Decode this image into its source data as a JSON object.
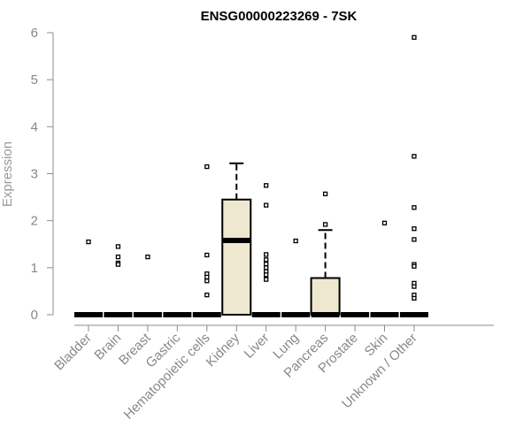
{
  "chart_data": {
    "type": "box",
    "title": "ENSG00000223269 - 7SK",
    "xlabel": "",
    "ylabel": "Expression",
    "ylim": [
      0,
      6
    ],
    "yticks": [
      "0",
      "1",
      "2",
      "3",
      "4",
      "5",
      "6"
    ],
    "categories": [
      "Bladder",
      "Brain",
      "Breast",
      "Gastric",
      "Hematopoietic cells",
      "Kidney",
      "Liver",
      "Lung",
      "Pancreas",
      "Prostate",
      "Skin",
      "Unknown / Other"
    ],
    "boxes": [
      {
        "category": "Bladder",
        "q1": 0,
        "median": 0,
        "q3": 0,
        "whisker_low": 0,
        "whisker_high": 0,
        "outliers": [
          1.55
        ]
      },
      {
        "category": "Brain",
        "q1": 0,
        "median": 0,
        "q3": 0,
        "whisker_low": 0,
        "whisker_high": 0,
        "outliers": [
          1.45,
          1.23,
          1.1,
          1.07
        ]
      },
      {
        "category": "Breast",
        "q1": 0,
        "median": 0,
        "q3": 0,
        "whisker_low": 0,
        "whisker_high": 0,
        "outliers": [
          1.23
        ]
      },
      {
        "category": "Gastric",
        "q1": 0,
        "median": 0,
        "q3": 0,
        "whisker_low": 0,
        "whisker_high": 0,
        "outliers": []
      },
      {
        "category": "Hematopoietic cells",
        "q1": 0,
        "median": 0,
        "q3": 0,
        "whisker_low": 0,
        "whisker_high": 0,
        "outliers": [
          3.15,
          1.27,
          0.87,
          0.8,
          0.72,
          0.42
        ]
      },
      {
        "category": "Kidney",
        "q1": 0,
        "median": 1.58,
        "q3": 2.45,
        "whisker_low": 0,
        "whisker_high": 3.22,
        "outliers": []
      },
      {
        "category": "Liver",
        "q1": 0,
        "median": 0,
        "q3": 0,
        "whisker_low": 0,
        "whisker_high": 0,
        "outliers": [
          2.75,
          2.33,
          1.28,
          1.17,
          1.08,
          1.0,
          0.92,
          0.85,
          0.75
        ]
      },
      {
        "category": "Lung",
        "q1": 0,
        "median": 0,
        "q3": 0,
        "whisker_low": 0,
        "whisker_high": 0,
        "outliers": [
          1.57
        ]
      },
      {
        "category": "Pancreas",
        "q1": 0,
        "median": 0,
        "q3": 0.78,
        "whisker_low": 0,
        "whisker_high": 1.8,
        "outliers": [
          2.57,
          1.92
        ]
      },
      {
        "category": "Prostate",
        "q1": 0,
        "median": 0,
        "q3": 0,
        "whisker_low": 0,
        "whisker_high": 0,
        "outliers": []
      },
      {
        "category": "Skin",
        "q1": 0,
        "median": 0,
        "q3": 0,
        "whisker_low": 0,
        "whisker_high": 0,
        "outliers": [
          1.95
        ]
      },
      {
        "category": "Unknown / Other",
        "q1": 0,
        "median": 0,
        "q3": 0,
        "whisker_low": 0,
        "whisker_high": 0,
        "outliers": [
          5.9,
          3.37,
          2.28,
          1.83,
          1.6,
          1.07,
          1.03,
          0.67,
          0.6,
          0.42,
          0.35
        ]
      }
    ],
    "colors": {
      "box_fill": "#efe8d0",
      "box_stroke": "#000000",
      "axis": "#8c8c8c",
      "tick_text": "#888888"
    },
    "grid": false,
    "legend": "none"
  }
}
